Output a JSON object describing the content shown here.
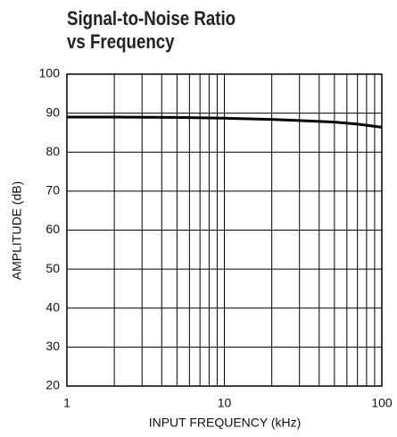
{
  "chart_data": {
    "type": "line",
    "title": "Signal-to-Noise Ratio vs Frequency",
    "x_label": "INPUT FREQUENCY (kHz)",
    "y_label": "AMPLITUDE (dB)",
    "x": [
      1,
      2,
      5,
      10,
      20,
      30,
      50,
      70,
      100
    ],
    "series": [
      {
        "name": "SNR",
        "color": "#000000",
        "values": [
          89,
          89,
          88.9,
          88.7,
          88.4,
          88.1,
          87.7,
          87.2,
          86.4
        ]
      }
    ],
    "xlim": [
      1,
      100
    ],
    "xticks": [
      1,
      10,
      100
    ],
    "xminorticks": [
      2,
      3,
      4,
      5,
      6,
      7,
      8,
      9,
      20,
      30,
      40,
      50,
      60,
      70,
      80,
      90
    ],
    "xscale": "log",
    "ylim": [
      20,
      100
    ],
    "yticks": [
      20,
      30,
      40,
      50,
      60,
      70,
      80,
      90,
      100
    ],
    "grid": true
  }
}
